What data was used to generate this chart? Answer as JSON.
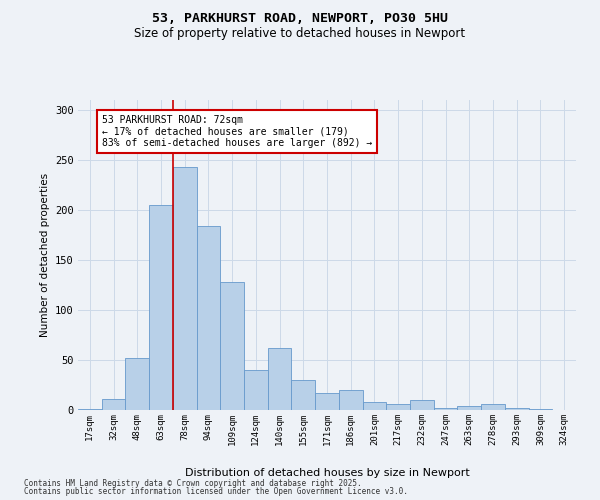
{
  "title1": "53, PARKHURST ROAD, NEWPORT, PO30 5HU",
  "title2": "Size of property relative to detached houses in Newport",
  "xlabel": "Distribution of detached houses by size in Newport",
  "ylabel": "Number of detached properties",
  "categories": [
    "17sqm",
    "32sqm",
    "48sqm",
    "63sqm",
    "78sqm",
    "94sqm",
    "109sqm",
    "124sqm",
    "140sqm",
    "155sqm",
    "171sqm",
    "186sqm",
    "201sqm",
    "217sqm",
    "232sqm",
    "247sqm",
    "263sqm",
    "278sqm",
    "293sqm",
    "309sqm",
    "324sqm"
  ],
  "values": [
    1,
    11,
    52,
    205,
    243,
    184,
    128,
    40,
    62,
    30,
    17,
    20,
    8,
    6,
    10,
    2,
    4,
    6,
    2,
    1,
    0
  ],
  "bar_color": "#b8d0e8",
  "bar_edge_color": "#6699cc",
  "grid_color": "#ccd9e8",
  "background_color": "#eef2f7",
  "vline_color": "#cc0000",
  "vline_x": 4,
  "annotation_text": "53 PARKHURST ROAD: 72sqm\n← 17% of detached houses are smaller (179)\n83% of semi-detached houses are larger (892) →",
  "annotation_box_facecolor": "#ffffff",
  "annotation_box_edgecolor": "#cc0000",
  "footer1": "Contains HM Land Registry data © Crown copyright and database right 2025.",
  "footer2": "Contains public sector information licensed under the Open Government Licence v3.0.",
  "ylim": [
    0,
    310
  ],
  "yticks": [
    0,
    50,
    100,
    150,
    200,
    250,
    300
  ]
}
